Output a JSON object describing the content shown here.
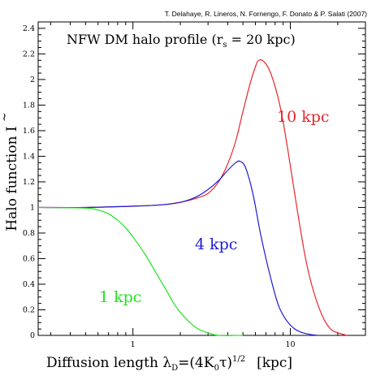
{
  "chart_data": {
    "type": "line",
    "credit": "T. Delahaye, R. Lineros, N. Fornengo, F. Donato & P. Salati (2007)",
    "title": "NFW DM halo profile (r",
    "title_sub": "s",
    "title_tail": " = 20 kpc)",
    "xlabel": {
      "main": "Diffusion length λ",
      "sub": "D",
      "eq": "=(4K",
      "sub0": "0",
      "tau": "τ",
      "tail": ")",
      "sup": "1/2",
      "unit": "[kpc]"
    },
    "ylabel": {
      "main": "Halo function ",
      "symbol": "I"
    },
    "xscale": "log",
    "xlim": [
      0.25,
      30
    ],
    "ylim": [
      0,
      2.45
    ],
    "xticks": [
      1,
      10
    ],
    "xtick_labels": [
      "1",
      "10"
    ],
    "yticks": [
      0,
      0.2,
      0.4,
      0.6,
      0.8,
      1,
      1.2,
      1.4,
      1.6,
      1.8,
      2,
      2.2,
      2.4
    ],
    "ytick_labels": [
      "0",
      "0.2",
      "0.4",
      "0.6",
      "0.8",
      "1",
      "1.2",
      "1.4",
      "1.6",
      "1.8",
      "2",
      "2.2",
      "2.4"
    ],
    "series": [
      {
        "name": "10 kpc",
        "color": "#e8262c",
        "points": [
          [
            0.25,
            1.0
          ],
          [
            0.5,
            1.0
          ],
          [
            1,
            1.01
          ],
          [
            1.5,
            1.02
          ],
          [
            2,
            1.04
          ],
          [
            2.5,
            1.07
          ],
          [
            3,
            1.11
          ],
          [
            3.5,
            1.2
          ],
          [
            4,
            1.34
          ],
          [
            4.5,
            1.52
          ],
          [
            5,
            1.75
          ],
          [
            5.5,
            1.95
          ],
          [
            6,
            2.1
          ],
          [
            6.3,
            2.15
          ],
          [
            6.8,
            2.14
          ],
          [
            7.5,
            2.05
          ],
          [
            8.5,
            1.82
          ],
          [
            9.5,
            1.5
          ],
          [
            11,
            1.0
          ],
          [
            12.5,
            0.6
          ],
          [
            14,
            0.35
          ],
          [
            16,
            0.15
          ],
          [
            18,
            0.05
          ],
          [
            20,
            0.02
          ],
          [
            23,
            0.0
          ]
        ]
      },
      {
        "name": "4 kpc",
        "color": "#1c1cd6",
        "points": [
          [
            0.25,
            1.0
          ],
          [
            0.5,
            1.0
          ],
          [
            1,
            1.01
          ],
          [
            1.5,
            1.02
          ],
          [
            2,
            1.04
          ],
          [
            2.5,
            1.08
          ],
          [
            3,
            1.14
          ],
          [
            3.5,
            1.21
          ],
          [
            4,
            1.29
          ],
          [
            4.5,
            1.35
          ],
          [
            4.8,
            1.36
          ],
          [
            5.2,
            1.31
          ],
          [
            5.8,
            1.1
          ],
          [
            6.5,
            0.78
          ],
          [
            7.5,
            0.45
          ],
          [
            8.5,
            0.22
          ],
          [
            10,
            0.08
          ],
          [
            12,
            0.02
          ],
          [
            15,
            0.0
          ]
        ]
      },
      {
        "name": "1 kpc",
        "color": "#1fe41f",
        "points": [
          [
            0.25,
            1.0
          ],
          [
            0.5,
            0.995
          ],
          [
            0.6,
            0.98
          ],
          [
            0.7,
            0.95
          ],
          [
            0.8,
            0.9
          ],
          [
            0.9,
            0.84
          ],
          [
            1,
            0.77
          ],
          [
            1.2,
            0.63
          ],
          [
            1.4,
            0.49
          ],
          [
            1.6,
            0.37
          ],
          [
            1.8,
            0.26
          ],
          [
            2,
            0.18
          ],
          [
            2.3,
            0.1
          ],
          [
            2.6,
            0.05
          ],
          [
            3,
            0.02
          ],
          [
            3.5,
            0.0
          ],
          [
            5,
            0.0
          ]
        ]
      }
    ],
    "legend": "inline labels next to each curve"
  }
}
